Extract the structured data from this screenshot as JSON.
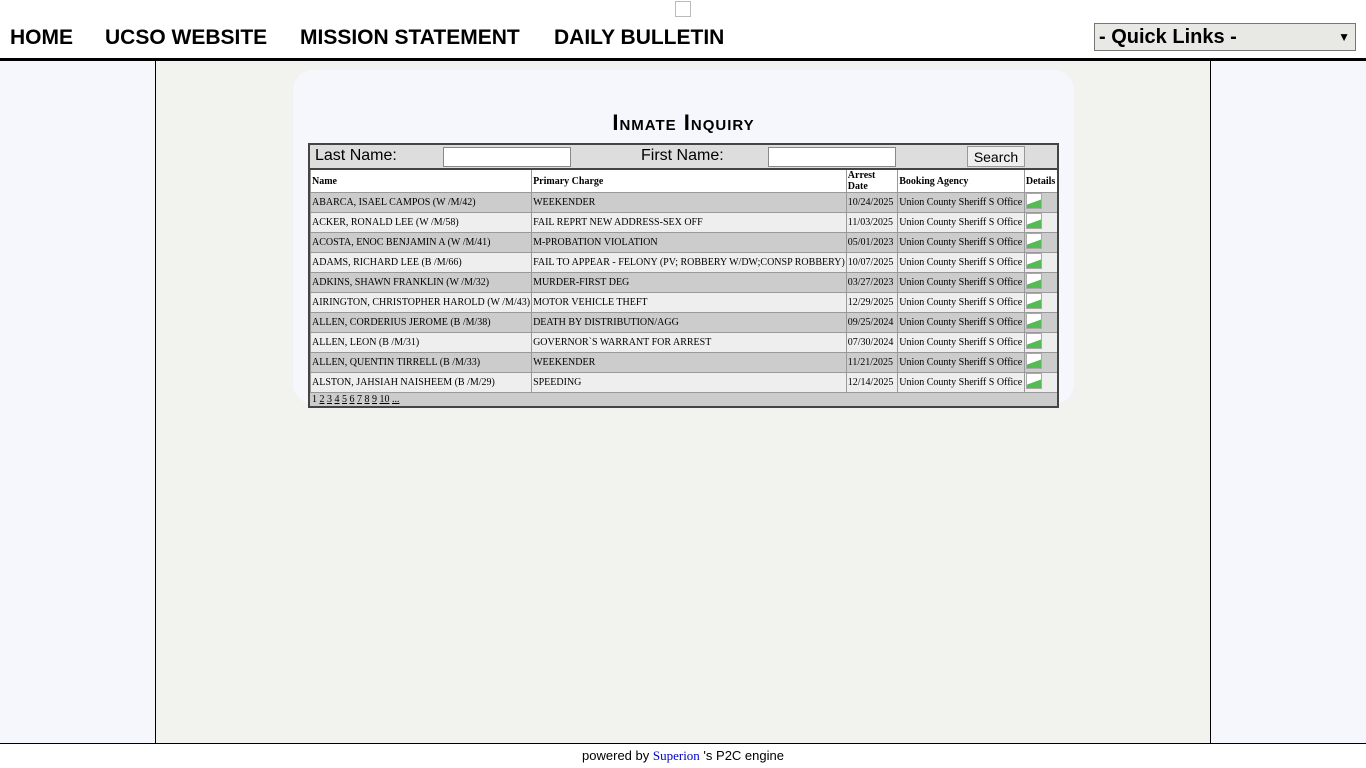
{
  "nav": {
    "items": [
      "HOME",
      "UCSO WEBSITE",
      "MISSION STATEMENT",
      "DAILY BULLETIN"
    ],
    "quick_links": "- Quick Links -"
  },
  "page": {
    "title": "Inmate Inquiry"
  },
  "search": {
    "last_name_label": "Last Name:",
    "first_name_label": "First Name:",
    "last_name_value": "",
    "first_name_value": "",
    "search_label": "Search"
  },
  "table": {
    "headers": [
      "Name",
      "Primary Charge",
      "Arrest Date",
      "Booking Agency",
      "Details"
    ],
    "rows": [
      [
        "ABARCA, ISAEL CAMPOS (W /M/42)",
        "WEEKENDER",
        "10/24/2025",
        "Union County Sheriff S Office"
      ],
      [
        "ACKER, RONALD LEE (W /M/58)",
        "FAIL REPRT NEW ADDRESS-SEX OFF",
        "11/03/2025",
        "Union County Sheriff S Office"
      ],
      [
        "ACOSTA, ENOC BENJAMIN A (W /M/41)",
        "M-PROBATION VIOLATION",
        "05/01/2023",
        "Union County Sheriff S Office"
      ],
      [
        "ADAMS, RICHARD LEE (B /M/66)",
        "FAIL TO APPEAR - FELONY (PV; ROBBERY W/DW;CONSP ROBBERY)",
        "10/07/2025",
        "Union County Sheriff S Office"
      ],
      [
        "ADKINS, SHAWN FRANKLIN (W /M/32)",
        "MURDER-FIRST DEG",
        "03/27/2023",
        "Union County Sheriff S Office"
      ],
      [
        "AIRINGTON, CHRISTOPHER HAROLD (W /M/43)",
        "MOTOR VEHICLE THEFT",
        "12/29/2025",
        "Union County Sheriff S Office"
      ],
      [
        "ALLEN, CORDERIUS JEROME (B /M/38)",
        "DEATH BY DISTRIBUTION/AGG",
        "09/25/2024",
        "Union County Sheriff S Office"
      ],
      [
        "ALLEN, LEON (B /M/31)",
        "GOVERNOR`S WARRANT FOR ARREST",
        "07/30/2024",
        "Union County Sheriff S Office"
      ],
      [
        "ALLEN, QUENTIN TIRRELL (B /M/33)",
        "WEEKENDER",
        "11/21/2025",
        "Union County Sheriff S Office"
      ],
      [
        "ALSTON, JAHSIAH NAISHEEM (B /M/29)",
        "SPEEDING",
        "12/14/2025",
        "Union County Sheriff S Office"
      ]
    ],
    "pages": [
      "1",
      "2",
      "3",
      "4",
      "5",
      "6",
      "7",
      "8",
      "9",
      "10",
      "..."
    ]
  },
  "footer": {
    "prefix": "powered by ",
    "link": "Superion",
    "suffix": " 's P2C engine"
  }
}
